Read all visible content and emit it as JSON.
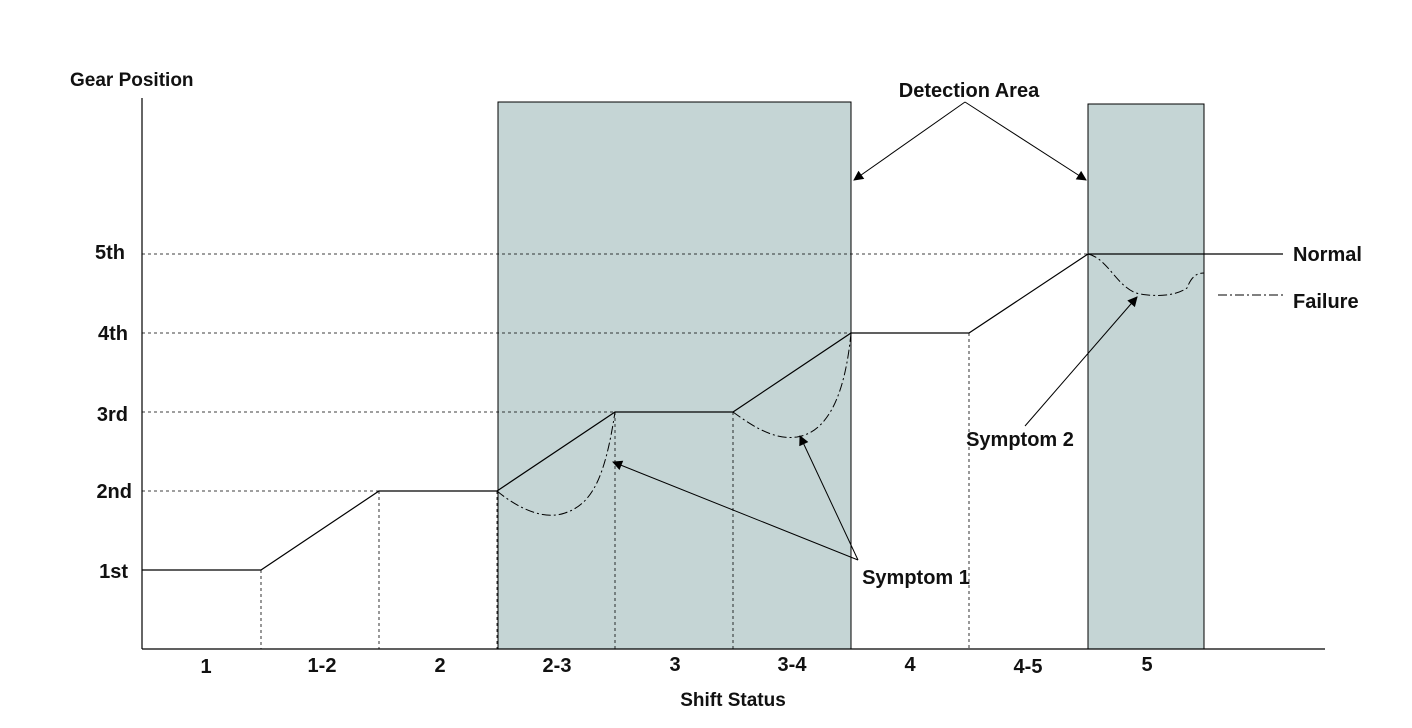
{
  "y_axis_title": "Gear Position",
  "x_axis_title": "Shift Status",
  "gear_levels": [
    "1st",
    "2nd",
    "3rd",
    "4th",
    "5th"
  ],
  "shift_states": [
    "1",
    "1-2",
    "2",
    "2-3",
    "3",
    "3-4",
    "4",
    "4-5",
    "5"
  ],
  "detection_area_label": "Detection Area",
  "legend": {
    "normal": "Normal",
    "failure": "Failure"
  },
  "symptoms": {
    "symptom_1": "Symptom 1",
    "symptom_2": "Symptom 2"
  },
  "colors": {
    "detection_area_fill": "#c5d5d5",
    "line": "#000000",
    "background": "#ffffff"
  }
}
